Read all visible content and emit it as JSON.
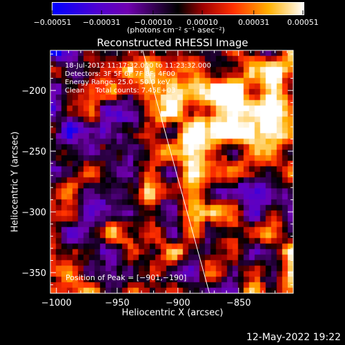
{
  "chart_data": {
    "type": "heatmap",
    "title": "Reconstructed RHESSI Image",
    "xlabel": "Heliocentric X (arcsec)",
    "ylabel": "Heliocentric Y (arcsec)",
    "xlim": [
      -1005,
      -805
    ],
    "ylim": [
      -367,
      -167
    ],
    "xticks": [
      -1000,
      -950,
      -900,
      -850
    ],
    "xtick_labels": [
      "−1000",
      "−950",
      "−900",
      "−850"
    ],
    "yticks": [
      -200,
      -250,
      -300,
      -350
    ],
    "ytick_labels": [
      "−200",
      "−250",
      "−300",
      "−350"
    ],
    "colorbar": {
      "range": [
        -0.00051,
        0.00051
      ],
      "ticks": [
        -0.00051,
        -0.00031,
        -0.0001,
        0.0001,
        0.00031,
        0.00051
      ],
      "tick_labels": [
        "−0.00051",
        "−0.00031",
        "−0.00010",
        "0.00010",
        "0.00031",
        "0.00051"
      ],
      "unit_label": "(photons cm⁻² s⁻¹ asec⁻²)",
      "colors": [
        "#0000ff",
        "#7000b0",
        "#000000",
        "#a00000",
        "#ff3000",
        "#ffb000",
        "#ffffff"
      ]
    },
    "peak": {
      "x": -901,
      "y": -190
    },
    "limb": {
      "x_top": -929,
      "x_bottom": -874
    }
  },
  "info_lines": [
    "18-Jul-2012 11:17:32.000 to 11:23:32.000",
    "Detectors: 3F 5F 6F 7F 8F, 4F00",
    "Energy Range: 25.0 - 50.0 keV",
    "Clean     Total counts: 7.45E+03"
  ],
  "peak_label": "Position of Peak = [−901,−190]",
  "timestamp": "12-May-2022 19:22"
}
